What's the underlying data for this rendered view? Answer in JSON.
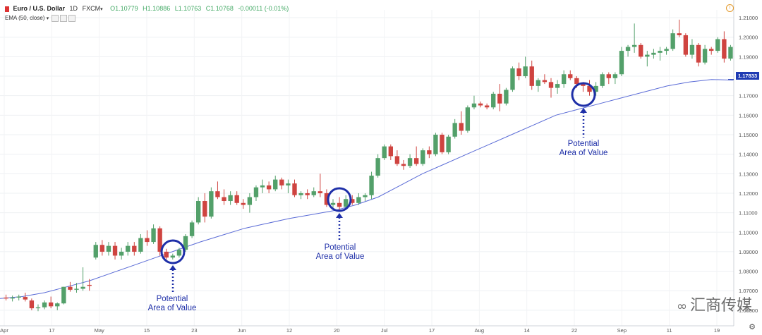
{
  "header": {
    "symbol": "Euro / U.S. Dollar",
    "interval": "1D",
    "exchange": "FXCM",
    "ohlc": {
      "o": "O1.10779",
      "h": "H1.10886",
      "l": "L1.10763",
      "c": "C1.10768",
      "chg": "-0.00011 (-0.01%)"
    },
    "indicator": "EMA (50, close)"
  },
  "last_price_label": "1.17833",
  "watermark": "汇商传媒",
  "annotations": [
    {
      "label1": "Potential",
      "label2": "Area of Value"
    },
    {
      "label1": "Potential",
      "label2": "Area of Value"
    },
    {
      "label1": "Potential",
      "label2": "Area of Value"
    }
  ],
  "colors": {
    "up": "#53a06a",
    "down": "#cf4440",
    "ema": "#5a6bd6",
    "circle": "#1e2fa8",
    "arrow": "#1e2fa8"
  },
  "chart_data": {
    "type": "candlestick",
    "title": "Euro / U.S. Dollar 1D FXCM",
    "ylim": [
      1.052,
      1.214
    ],
    "y_ticks": [
      1.06,
      1.07,
      1.08,
      1.09,
      1.1,
      1.11,
      1.12,
      1.13,
      1.14,
      1.15,
      1.16,
      1.17,
      1.18,
      1.19,
      1.2,
      1.21
    ],
    "x_ticks": [
      "Apr",
      "17",
      "May",
      "15",
      "23",
      "Jun",
      "12",
      "20",
      "Jul",
      "17",
      "Aug",
      "14",
      "22",
      "Sep",
      "11",
      "19"
    ],
    "series": [
      {
        "name": "EURUSD",
        "ohlc": [
          [
            1.0665,
            1.068,
            1.065,
            1.066
          ],
          [
            1.066,
            1.0675,
            1.0645,
            1.0665
          ],
          [
            1.0665,
            1.068,
            1.065,
            1.067
          ],
          [
            1.0668,
            1.069,
            1.0645,
            1.0655
          ],
          [
            1.065,
            1.066,
            1.06,
            1.061
          ],
          [
            1.061,
            1.063,
            1.0595,
            1.0615
          ],
          [
            1.0615,
            1.065,
            1.0605,
            1.064
          ],
          [
            1.064,
            1.067,
            1.061,
            1.062
          ],
          [
            1.062,
            1.064,
            1.06,
            1.0635
          ],
          [
            1.0635,
            1.072,
            1.063,
            1.072
          ],
          [
            1.072,
            1.0745,
            1.0695,
            1.0705
          ],
          [
            1.0705,
            1.074,
            1.069,
            1.071
          ],
          [
            1.071,
            1.082,
            1.07,
            1.072
          ],
          [
            1.073,
            1.076,
            1.07,
            1.0725
          ],
          [
            1.087,
            1.095,
            1.086,
            1.0935
          ],
          [
            1.0935,
            1.096,
            1.088,
            1.09
          ],
          [
            1.09,
            1.095,
            1.088,
            1.093
          ],
          [
            1.093,
            1.095,
            1.086,
            1.088
          ],
          [
            1.088,
            1.092,
            1.086,
            1.09
          ],
          [
            1.09,
            1.095,
            1.088,
            1.093
          ],
          [
            1.093,
            1.095,
            1.088,
            1.09
          ],
          [
            1.09,
            1.099,
            1.089,
            1.097
          ],
          [
            1.097,
            1.101,
            1.093,
            1.095
          ],
          [
            1.095,
            1.104,
            1.094,
            1.102
          ],
          [
            1.102,
            1.103,
            1.088,
            1.09
          ],
          [
            1.09,
            1.0915,
            1.086,
            1.087
          ],
          [
            1.087,
            1.089,
            1.086,
            1.088
          ],
          [
            1.088,
            1.092,
            1.087,
            1.091
          ],
          [
            1.091,
            1.099,
            1.09,
            1.098
          ],
          [
            1.098,
            1.106,
            1.097,
            1.105
          ],
          [
            1.105,
            1.118,
            1.104,
            1.116
          ],
          [
            1.116,
            1.12,
            1.105,
            1.108
          ],
          [
            1.108,
            1.123,
            1.107,
            1.121
          ],
          [
            1.121,
            1.126,
            1.117,
            1.118
          ],
          [
            1.118,
            1.122,
            1.114,
            1.116
          ],
          [
            1.116,
            1.121,
            1.114,
            1.119
          ],
          [
            1.119,
            1.121,
            1.114,
            1.115
          ],
          [
            1.115,
            1.117,
            1.112,
            1.114
          ],
          [
            1.114,
            1.12,
            1.11,
            1.118
          ],
          [
            1.118,
            1.124,
            1.116,
            1.123
          ],
          [
            1.123,
            1.127,
            1.12,
            1.124
          ],
          [
            1.124,
            1.126,
            1.12,
            1.122
          ],
          [
            1.122,
            1.129,
            1.121,
            1.127
          ],
          [
            1.127,
            1.128,
            1.122,
            1.124
          ],
          [
            1.124,
            1.127,
            1.12,
            1.125
          ],
          [
            1.125,
            1.127,
            1.118,
            1.119
          ],
          [
            1.119,
            1.121,
            1.117,
            1.12
          ],
          [
            1.12,
            1.122,
            1.117,
            1.119
          ],
          [
            1.119,
            1.123,
            1.118,
            1.121
          ],
          [
            1.121,
            1.13,
            1.118,
            1.12
          ],
          [
            1.12,
            1.122,
            1.113,
            1.114
          ],
          [
            1.114,
            1.117,
            1.112,
            1.115
          ],
          [
            1.115,
            1.118,
            1.111,
            1.113
          ],
          [
            1.113,
            1.119,
            1.112,
            1.117
          ],
          [
            1.117,
            1.119,
            1.114,
            1.115
          ],
          [
            1.115,
            1.12,
            1.114,
            1.118
          ],
          [
            1.118,
            1.12,
            1.116,
            1.119
          ],
          [
            1.119,
            1.131,
            1.117,
            1.129
          ],
          [
            1.129,
            1.14,
            1.128,
            1.138
          ],
          [
            1.138,
            1.145,
            1.137,
            1.144
          ],
          [
            1.144,
            1.145,
            1.137,
            1.139
          ],
          [
            1.139,
            1.142,
            1.134,
            1.135
          ],
          [
            1.135,
            1.137,
            1.132,
            1.134
          ],
          [
            1.134,
            1.14,
            1.133,
            1.138
          ],
          [
            1.138,
            1.144,
            1.134,
            1.135
          ],
          [
            1.135,
            1.143,
            1.134,
            1.142
          ],
          [
            1.142,
            1.144,
            1.138,
            1.14
          ],
          [
            1.14,
            1.151,
            1.139,
            1.15
          ],
          [
            1.15,
            1.151,
            1.14,
            1.141
          ],
          [
            1.141,
            1.15,
            1.14,
            1.149
          ],
          [
            1.149,
            1.158,
            1.148,
            1.156
          ],
          [
            1.156,
            1.162,
            1.15,
            1.152
          ],
          [
            1.152,
            1.165,
            1.151,
            1.164
          ],
          [
            1.164,
            1.17,
            1.163,
            1.166
          ],
          [
            1.166,
            1.167,
            1.164,
            1.165
          ],
          [
            1.165,
            1.166,
            1.163,
            1.164
          ],
          [
            1.164,
            1.172,
            1.163,
            1.171
          ],
          [
            1.171,
            1.176,
            1.162,
            1.166
          ],
          [
            1.166,
            1.174,
            1.165,
            1.173
          ],
          [
            1.173,
            1.185,
            1.172,
            1.184
          ],
          [
            1.184,
            1.187,
            1.178,
            1.18
          ],
          [
            1.18,
            1.19,
            1.179,
            1.185
          ],
          [
            1.185,
            1.188,
            1.173,
            1.175
          ],
          [
            1.175,
            1.179,
            1.172,
            1.178
          ],
          [
            1.178,
            1.181,
            1.176,
            1.177
          ],
          [
            1.177,
            1.179,
            1.169,
            1.174
          ],
          [
            1.174,
            1.178,
            1.171,
            1.176
          ],
          [
            1.176,
            1.183,
            1.174,
            1.181
          ],
          [
            1.181,
            1.183,
            1.178,
            1.179
          ],
          [
            1.179,
            1.18,
            1.174,
            1.176
          ],
          [
            1.176,
            1.177,
            1.172,
            1.175
          ],
          [
            1.175,
            1.178,
            1.17,
            1.172
          ],
          [
            1.172,
            1.177,
            1.17,
            1.175
          ],
          [
            1.175,
            1.182,
            1.174,
            1.181
          ],
          [
            1.181,
            1.182,
            1.176,
            1.179
          ],
          [
            1.179,
            1.182,
            1.176,
            1.181
          ],
          [
            1.181,
            1.195,
            1.18,
            1.193
          ],
          [
            1.193,
            1.196,
            1.19,
            1.195
          ],
          [
            1.195,
            1.207,
            1.192,
            1.196
          ],
          [
            1.196,
            1.197,
            1.189,
            1.19
          ],
          [
            1.19,
            1.193,
            1.185,
            1.191
          ],
          [
            1.191,
            1.194,
            1.189,
            1.192
          ],
          [
            1.192,
            1.195,
            1.188,
            1.193
          ],
          [
            1.193,
            1.195,
            1.191,
            1.194
          ],
          [
            1.194,
            1.204,
            1.193,
            1.202
          ],
          [
            1.202,
            1.209,
            1.2,
            1.201
          ],
          [
            1.201,
            1.202,
            1.19,
            1.191
          ],
          [
            1.191,
            1.199,
            1.189,
            1.196
          ],
          [
            1.196,
            1.197,
            1.185,
            1.187
          ],
          [
            1.187,
            1.196,
            1.186,
            1.194
          ],
          [
            1.194,
            1.195,
            1.191,
            1.193
          ],
          [
            1.193,
            1.2,
            1.192,
            1.199
          ],
          [
            1.199,
            1.203,
            1.187,
            1.189
          ],
          [
            1.189,
            1.196,
            1.188,
            1.195
          ]
        ]
      },
      {
        "name": "EMA (50, close)",
        "values": [
          1.066,
          1.067,
          1.069,
          1.072,
          1.075,
          1.079,
          1.083,
          1.087,
          1.091,
          1.095,
          1.0985,
          1.102,
          1.1045,
          1.107,
          1.109,
          1.111,
          1.114,
          1.118,
          1.124,
          1.13,
          1.135,
          1.14,
          1.145,
          1.15,
          1.155,
          1.16,
          1.163,
          1.166,
          1.169,
          1.172,
          1.175,
          1.177,
          1.1783,
          1.178
        ]
      }
    ]
  }
}
